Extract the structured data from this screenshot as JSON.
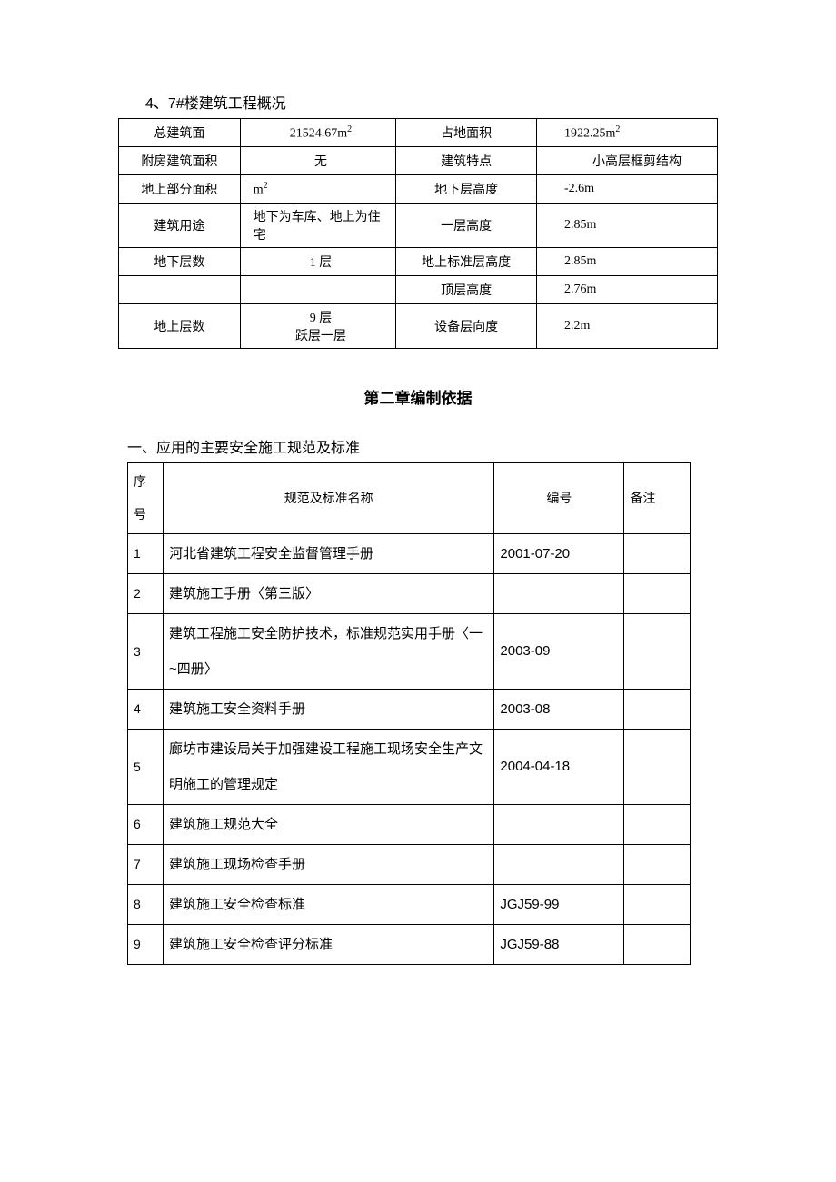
{
  "heading_small": "4、7#楼建筑工程概况",
  "chapter_heading": "第二章编制依据",
  "section_heading": "一、应用的主要安全施工规范及标准",
  "table1": {
    "rows": [
      {
        "l1": "总建筑面",
        "v1_html": "21524.67m<span class='sup'>2</span>",
        "l2": "占地面积",
        "v2_html": "1922.25m<span class='sup'>2</span>",
        "v1_align": "center"
      },
      {
        "l1": "附房建筑面积",
        "v1_html": "无",
        "l2": "建筑特点",
        "v2_html": "小高层框剪结构",
        "v1_align": "center",
        "v2_align": "center"
      },
      {
        "l1": "地上部分面积",
        "v1_html": "m<span class='sup'>2</span>",
        "l2": "地下层高度",
        "v2_html": "-2.6m"
      },
      {
        "l1": "建筑用途",
        "v1_html": "地下为车库、地上为住宅",
        "l2": "一层高度",
        "v2_html": "2.85m"
      },
      {
        "l1": "地下层数",
        "v1_html": "1 层",
        "l2": "地上标准层高度",
        "v2_html": "2.85m",
        "v1_align": "center"
      },
      {
        "l1": "",
        "v1_html": "",
        "l2": "顶层高度",
        "v2_html": "2.76m"
      },
      {
        "l1": "地上层数",
        "v1_html": "9 层<br>跃层一层",
        "l2": "设备层向度",
        "v2_html": "2.2m",
        "v1_align": "center",
        "row_class": "t1-row7"
      }
    ]
  },
  "table2": {
    "head": {
      "c0": "序号",
      "c1": "规范及标准名称",
      "c2": "编号",
      "c3": "备注"
    },
    "rows": [
      {
        "n": "1",
        "name": "河北省建筑工程安全监督管理手册",
        "code": "2001-07-20",
        "note": ""
      },
      {
        "n": "2",
        "name": "建筑施工手册〈第三版〉",
        "code": "",
        "note": ""
      },
      {
        "n": "3",
        "name": "建筑工程施工安全防护技术，标准规范实用手册〈一~四册〉",
        "code": "2003-09",
        "note": ""
      },
      {
        "n": "4",
        "name": "建筑施工安全资料手册",
        "code": "2003-08",
        "note": ""
      },
      {
        "n": "5",
        "name": "廊坊市建设局关于加强建设工程施工现场安全生产文明施工的管理规定",
        "code": "2004-04-18",
        "note": ""
      },
      {
        "n": "6",
        "name": "建筑施工规范大全",
        "code": "",
        "note": ""
      },
      {
        "n": "7",
        "name": "建筑施工现场检查手册",
        "code": "",
        "note": ""
      },
      {
        "n": "8",
        "name": "建筑施工安全检查标准",
        "code": "JGJ59-99",
        "note": ""
      },
      {
        "n": "9",
        "name": "建筑施工安全检查评分标准",
        "code": "JGJ59-88",
        "note": ""
      }
    ]
  }
}
